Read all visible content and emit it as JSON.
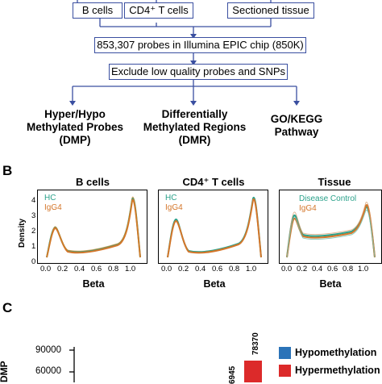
{
  "panel_a": {
    "boxes": [
      "B cells",
      "CD4⁺ T cells",
      "Sectioned tissue"
    ],
    "probes_box": "853,307 probes in Illumina EPIC chip (850K)",
    "exclude_box": "Exclude low quality probes and SNPs",
    "outputs": [
      {
        "line1": "Hyper/Hypo",
        "line2": "Methylated Probes",
        "line3": "(DMP)"
      },
      {
        "line1": "Differentially",
        "line2": "Methylated Regions",
        "line3": "(DMR)"
      },
      {
        "line1": "GO/KEGG",
        "line2": "Pathway",
        "line3": ""
      }
    ]
  },
  "panel_b": {
    "letter": "B",
    "ylabel": "Density",
    "xlabel": "Beta",
    "yticks": [
      "4",
      "3",
      "2",
      "1",
      "0"
    ],
    "xticks": [
      "0.0",
      "0.2",
      "0.4",
      "0.6",
      "0.8",
      "1.0"
    ],
    "colors": {
      "hc": "#2aa18a",
      "igg4": "#d4762a"
    },
    "plots": [
      {
        "title": "B cells",
        "legend": [
          "HC",
          "IgG4"
        ]
      },
      {
        "title": "CD4⁺ T cells",
        "legend": [
          "HC",
          "IgG4"
        ]
      },
      {
        "title": "Tissue",
        "legend": [
          "Disease Control",
          "IgG4"
        ]
      }
    ]
  },
  "panel_c": {
    "letter": "C",
    "ylabel_partial": "DMP",
    "yticks": [
      "90000",
      "60000"
    ],
    "bar_labels": [
      "78370",
      "6945"
    ],
    "legend": [
      {
        "label": "Hypomethylation",
        "color": "#2b73b8"
      },
      {
        "label": "Hypermethylation",
        "color": "#dc2a2a"
      }
    ]
  }
}
